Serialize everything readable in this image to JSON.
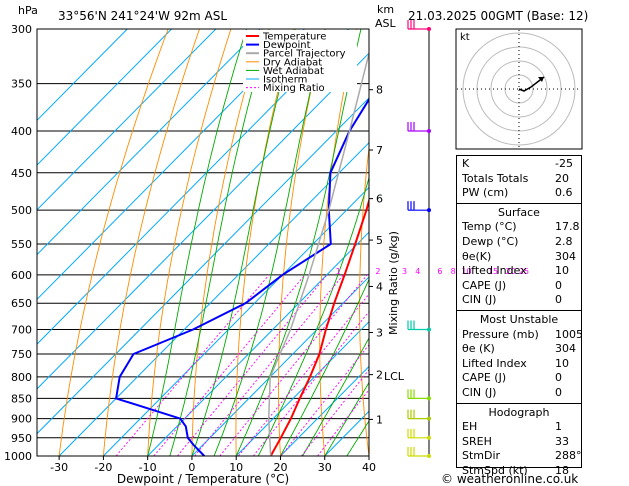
{
  "header": {
    "hpa_label": "hPa",
    "location": "33°56'N  241°24'W  92m  ASL",
    "km_label": "km",
    "asl_label": "ASL",
    "datetime": "21.03.2025  00GMT  (Base: 12)"
  },
  "footer": {
    "copyright": "© weatheronline.co.uk"
  },
  "colors": {
    "temperature": "#ff0000",
    "dewpoint": "#0000ff",
    "parcel": "#aaaaaa",
    "dry_adiabat": "#ff8c00",
    "wet_adiabat": "#00aa00",
    "isotherm": "#00aaff",
    "mixing_ratio": "#ff00ff"
  },
  "chart_data": {
    "type": "line",
    "xlabel": "Dewpoint / Temperature (°C)",
    "ylabel": "Mixing Ratio (g/kg)",
    "x_ticks": [
      -30,
      -20,
      -10,
      0,
      10,
      20,
      30,
      40
    ],
    "xlim": [
      -35,
      40
    ],
    "pressure_levels": [
      300,
      350,
      400,
      450,
      500,
      550,
      600,
      650,
      700,
      750,
      800,
      850,
      900,
      950,
      1000
    ],
    "ylim": [
      1000,
      300
    ],
    "km_ticks": [
      {
        "label": "8",
        "p": 356
      },
      {
        "label": "7",
        "p": 422
      },
      {
        "label": "6",
        "p": 484
      },
      {
        "label": "5",
        "p": 544
      },
      {
        "label": "4",
        "p": 620
      },
      {
        "label": "3",
        "p": 706
      },
      {
        "label": "2",
        "p": 795
      },
      {
        "label": "1",
        "p": 902
      }
    ],
    "lcl": {
      "label": "LCL",
      "p": 798
    },
    "mixing_ratio_labels": [
      {
        "label": "1",
        "t": -7
      },
      {
        "label": "2",
        "t": 2
      },
      {
        "label": "3",
        "t": 8
      },
      {
        "label": "4",
        "t": 11
      },
      {
        "label": "6",
        "t": 16
      },
      {
        "label": "8",
        "t": 19
      },
      {
        "label": "10",
        "t": 22
      },
      {
        "label": "15",
        "t": 28
      },
      {
        "label": "20",
        "t": 32
      },
      {
        "label": "25",
        "t": 35
      }
    ],
    "mixing_ratio_values": [
      1,
      2,
      3,
      4,
      6,
      8,
      10,
      15,
      20,
      25
    ],
    "legend": [
      "Temperature",
      "Dewpoint",
      "Parcel Trajectory",
      "Dry Adiabat",
      "Wet Adiabat",
      "Isotherm",
      "Mixing Ratio"
    ],
    "legend_position": "top-right",
    "series": [
      {
        "name": "Temperature",
        "points": [
          {
            "p": 1000,
            "t": 17.8
          },
          {
            "p": 950,
            "t": 16
          },
          {
            "p": 900,
            "t": 14
          },
          {
            "p": 850,
            "t": 11.5
          },
          {
            "p": 800,
            "t": 9
          },
          {
            "p": 750,
            "t": 6
          },
          {
            "p": 700,
            "t": 2
          },
          {
            "p": 650,
            "t": -2
          },
          {
            "p": 600,
            "t": -6
          },
          {
            "p": 550,
            "t": -10.5
          },
          {
            "p": 500,
            "t": -15.5
          },
          {
            "p": 450,
            "t": -21.5
          },
          {
            "p": 400,
            "t": -28.5
          },
          {
            "p": 350,
            "t": -36.5
          },
          {
            "p": 300,
            "t": -45
          }
        ]
      },
      {
        "name": "Dewpoint",
        "points": [
          {
            "p": 1000,
            "t": 2.8
          },
          {
            "p": 970,
            "t": -2
          },
          {
            "p": 950,
            "t": -5
          },
          {
            "p": 920,
            "t": -8
          },
          {
            "p": 900,
            "t": -11
          },
          {
            "p": 850,
            "t": -30
          },
          {
            "p": 800,
            "t": -34
          },
          {
            "p": 750,
            "t": -36
          },
          {
            "p": 700,
            "t": -28
          },
          {
            "p": 650,
            "t": -22
          },
          {
            "p": 600,
            "t": -20
          },
          {
            "p": 550,
            "t": -16
          },
          {
            "p": 500,
            "t": -24
          },
          {
            "p": 450,
            "t": -32
          },
          {
            "p": 400,
            "t": -37
          },
          {
            "p": 350,
            "t": -41
          },
          {
            "p": 300,
            "t": -52
          }
        ]
      },
      {
        "name": "Parcel Trajectory",
        "points": [
          {
            "p": 1000,
            "t": 17.8
          },
          {
            "p": 900,
            "t": 9
          },
          {
            "p": 800,
            "t": 0
          },
          {
            "p": 700,
            "t": -6
          },
          {
            "p": 600,
            "t": -14
          },
          {
            "p": 500,
            "t": -24
          },
          {
            "p": 400,
            "t": -37
          },
          {
            "p": 300,
            "t": -54
          }
        ]
      }
    ]
  },
  "wind_barbs": [
    {
      "p": 300,
      "color": "#ff0077"
    },
    {
      "p": 400,
      "color": "#aa00ff"
    },
    {
      "p": 500,
      "color": "#0000ff"
    },
    {
      "p": 700,
      "color": "#00ccaa"
    },
    {
      "p": 850,
      "color": "#88dd00"
    },
    {
      "p": 900,
      "color": "#aacc00"
    },
    {
      "p": 950,
      "color": "#ccdd00"
    },
    {
      "p": 1000,
      "color": "#ccdd00"
    }
  ],
  "hodograph": {
    "unit_label": "kt",
    "rings": 4
  },
  "stats": {
    "top": [
      {
        "k": "K",
        "v": "-25"
      },
      {
        "k": "Totals Totals",
        "v": "20"
      },
      {
        "k": "PW (cm)",
        "v": "0.6"
      }
    ],
    "surface": {
      "title": "Surface",
      "rows": [
        {
          "k": "Temp (°C)",
          "v": "17.8"
        },
        {
          "k": "Dewp (°C)",
          "v": "2.8"
        },
        {
          "k": "θe(K)",
          "v": "304"
        },
        {
          "k": "Lifted Index",
          "v": "10"
        },
        {
          "k": "CAPE (J)",
          "v": "0"
        },
        {
          "k": "CIN (J)",
          "v": "0"
        }
      ]
    },
    "most_unstable": {
      "title": "Most Unstable",
      "rows": [
        {
          "k": "Pressure (mb)",
          "v": "1005"
        },
        {
          "k": "θe (K)",
          "v": "304"
        },
        {
          "k": "Lifted Index",
          "v": "10"
        },
        {
          "k": "CAPE (J)",
          "v": "0"
        },
        {
          "k": "CIN (J)",
          "v": "0"
        }
      ]
    },
    "hodograph": {
      "title": "Hodograph",
      "rows": [
        {
          "k": "EH",
          "v": "1"
        },
        {
          "k": "SREH",
          "v": "33"
        },
        {
          "k": "StmDir",
          "v": "288°"
        },
        {
          "k": "StmSpd (kt)",
          "v": "18"
        }
      ]
    }
  }
}
